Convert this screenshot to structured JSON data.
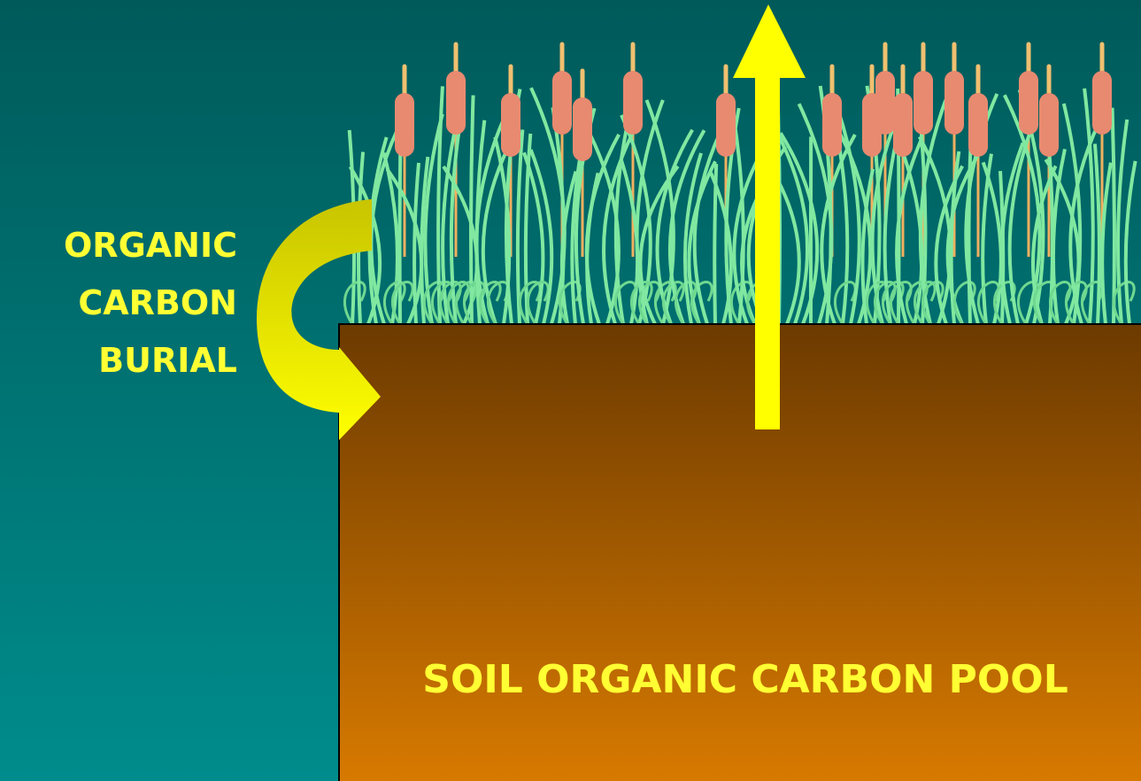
{
  "labels": {
    "burial": [
      "ORGANIC",
      "CARBON",
      "BURIAL"
    ],
    "pool": "SOIL ORGANIC CARBON POOL"
  }
}
